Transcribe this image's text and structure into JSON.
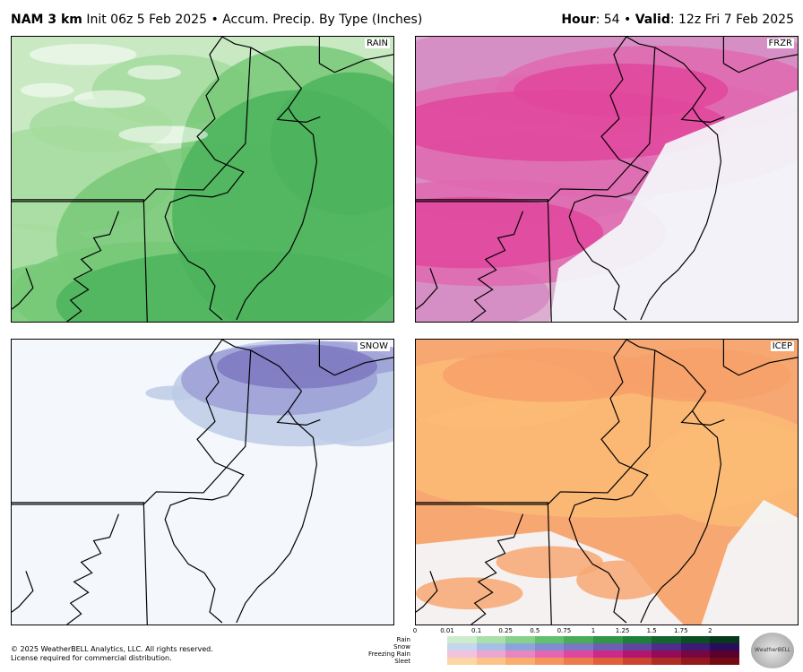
{
  "header": {
    "model": "NAM 3 km",
    "init_text": "Init 06z 5 Feb 2025",
    "bullet": "•",
    "product": "Accum. Precip. By Type (Inches)",
    "hour_label": "Hour",
    "hour_value": ": 54",
    "valid_label": "Valid",
    "valid_value": ": 12z Fri 7 Feb 2025"
  },
  "panels": [
    {
      "label": "RAIN",
      "base": "#c9e9c3",
      "light": "#a6dc9f",
      "mid": "#77c978",
      "heavy": "#4cb35c"
    },
    {
      "label": "FRZR",
      "base": "#dcaed0",
      "light": "#d58ac2",
      "mid": "#e06ab0",
      "heavy": "#e0479c"
    },
    {
      "label": "SNOW",
      "base": "#f4f7fb",
      "light": "#bccbe6",
      "mid": "#9c9fd6",
      "heavy": "#7d78c0"
    },
    {
      "label": "ICEP",
      "base": "#f7a872",
      "light": "#fbbb76",
      "mid": "#f7a06a",
      "heavy": "#f3935f"
    }
  ],
  "legend": {
    "ticks": [
      "0",
      "0.01",
      "0.1",
      "0.25",
      "0.5",
      "0.75",
      "1",
      "1.25",
      "1.5",
      "1.75",
      "2"
    ],
    "rows": [
      {
        "label": "Rain",
        "colors": [
          "#cdeccc",
          "#a9dfa9",
          "#86d18b",
          "#63c06c",
          "#49ad58",
          "#2f9747",
          "#1e7f39",
          "#13662d",
          "#0c4e23",
          "#06391a"
        ]
      },
      {
        "label": "Snow",
        "colors": [
          "#c6d6ee",
          "#a6bfe6",
          "#8ba4dc",
          "#7f8ed1",
          "#7a78c3",
          "#6d5fb2",
          "#5e469f",
          "#4e2e8b",
          "#3c1a75",
          "#2a0c5c"
        ]
      },
      {
        "label": "Freezing Rain",
        "colors": [
          "#f2c3de",
          "#eda6cf",
          "#e886c0",
          "#e466b1",
          "#dc479f",
          "#cc2a88",
          "#b3166f",
          "#960b57",
          "#780641",
          "#5a022d"
        ]
      },
      {
        "label": "Sleet",
        "colors": [
          "#fcd6a3",
          "#fbc388",
          "#f9ad6e",
          "#f6955b",
          "#ee7b4b",
          "#e0603c",
          "#cb4530",
          "#b02d26",
          "#93191c",
          "#740b13"
        ]
      }
    ]
  },
  "footer": {
    "line1": "© 2025 WeatherBELL Analytics, LLC. All rights reserved.",
    "line2": "License required for commercial distribution."
  },
  "logo": {
    "text": "WeatherBELL"
  }
}
